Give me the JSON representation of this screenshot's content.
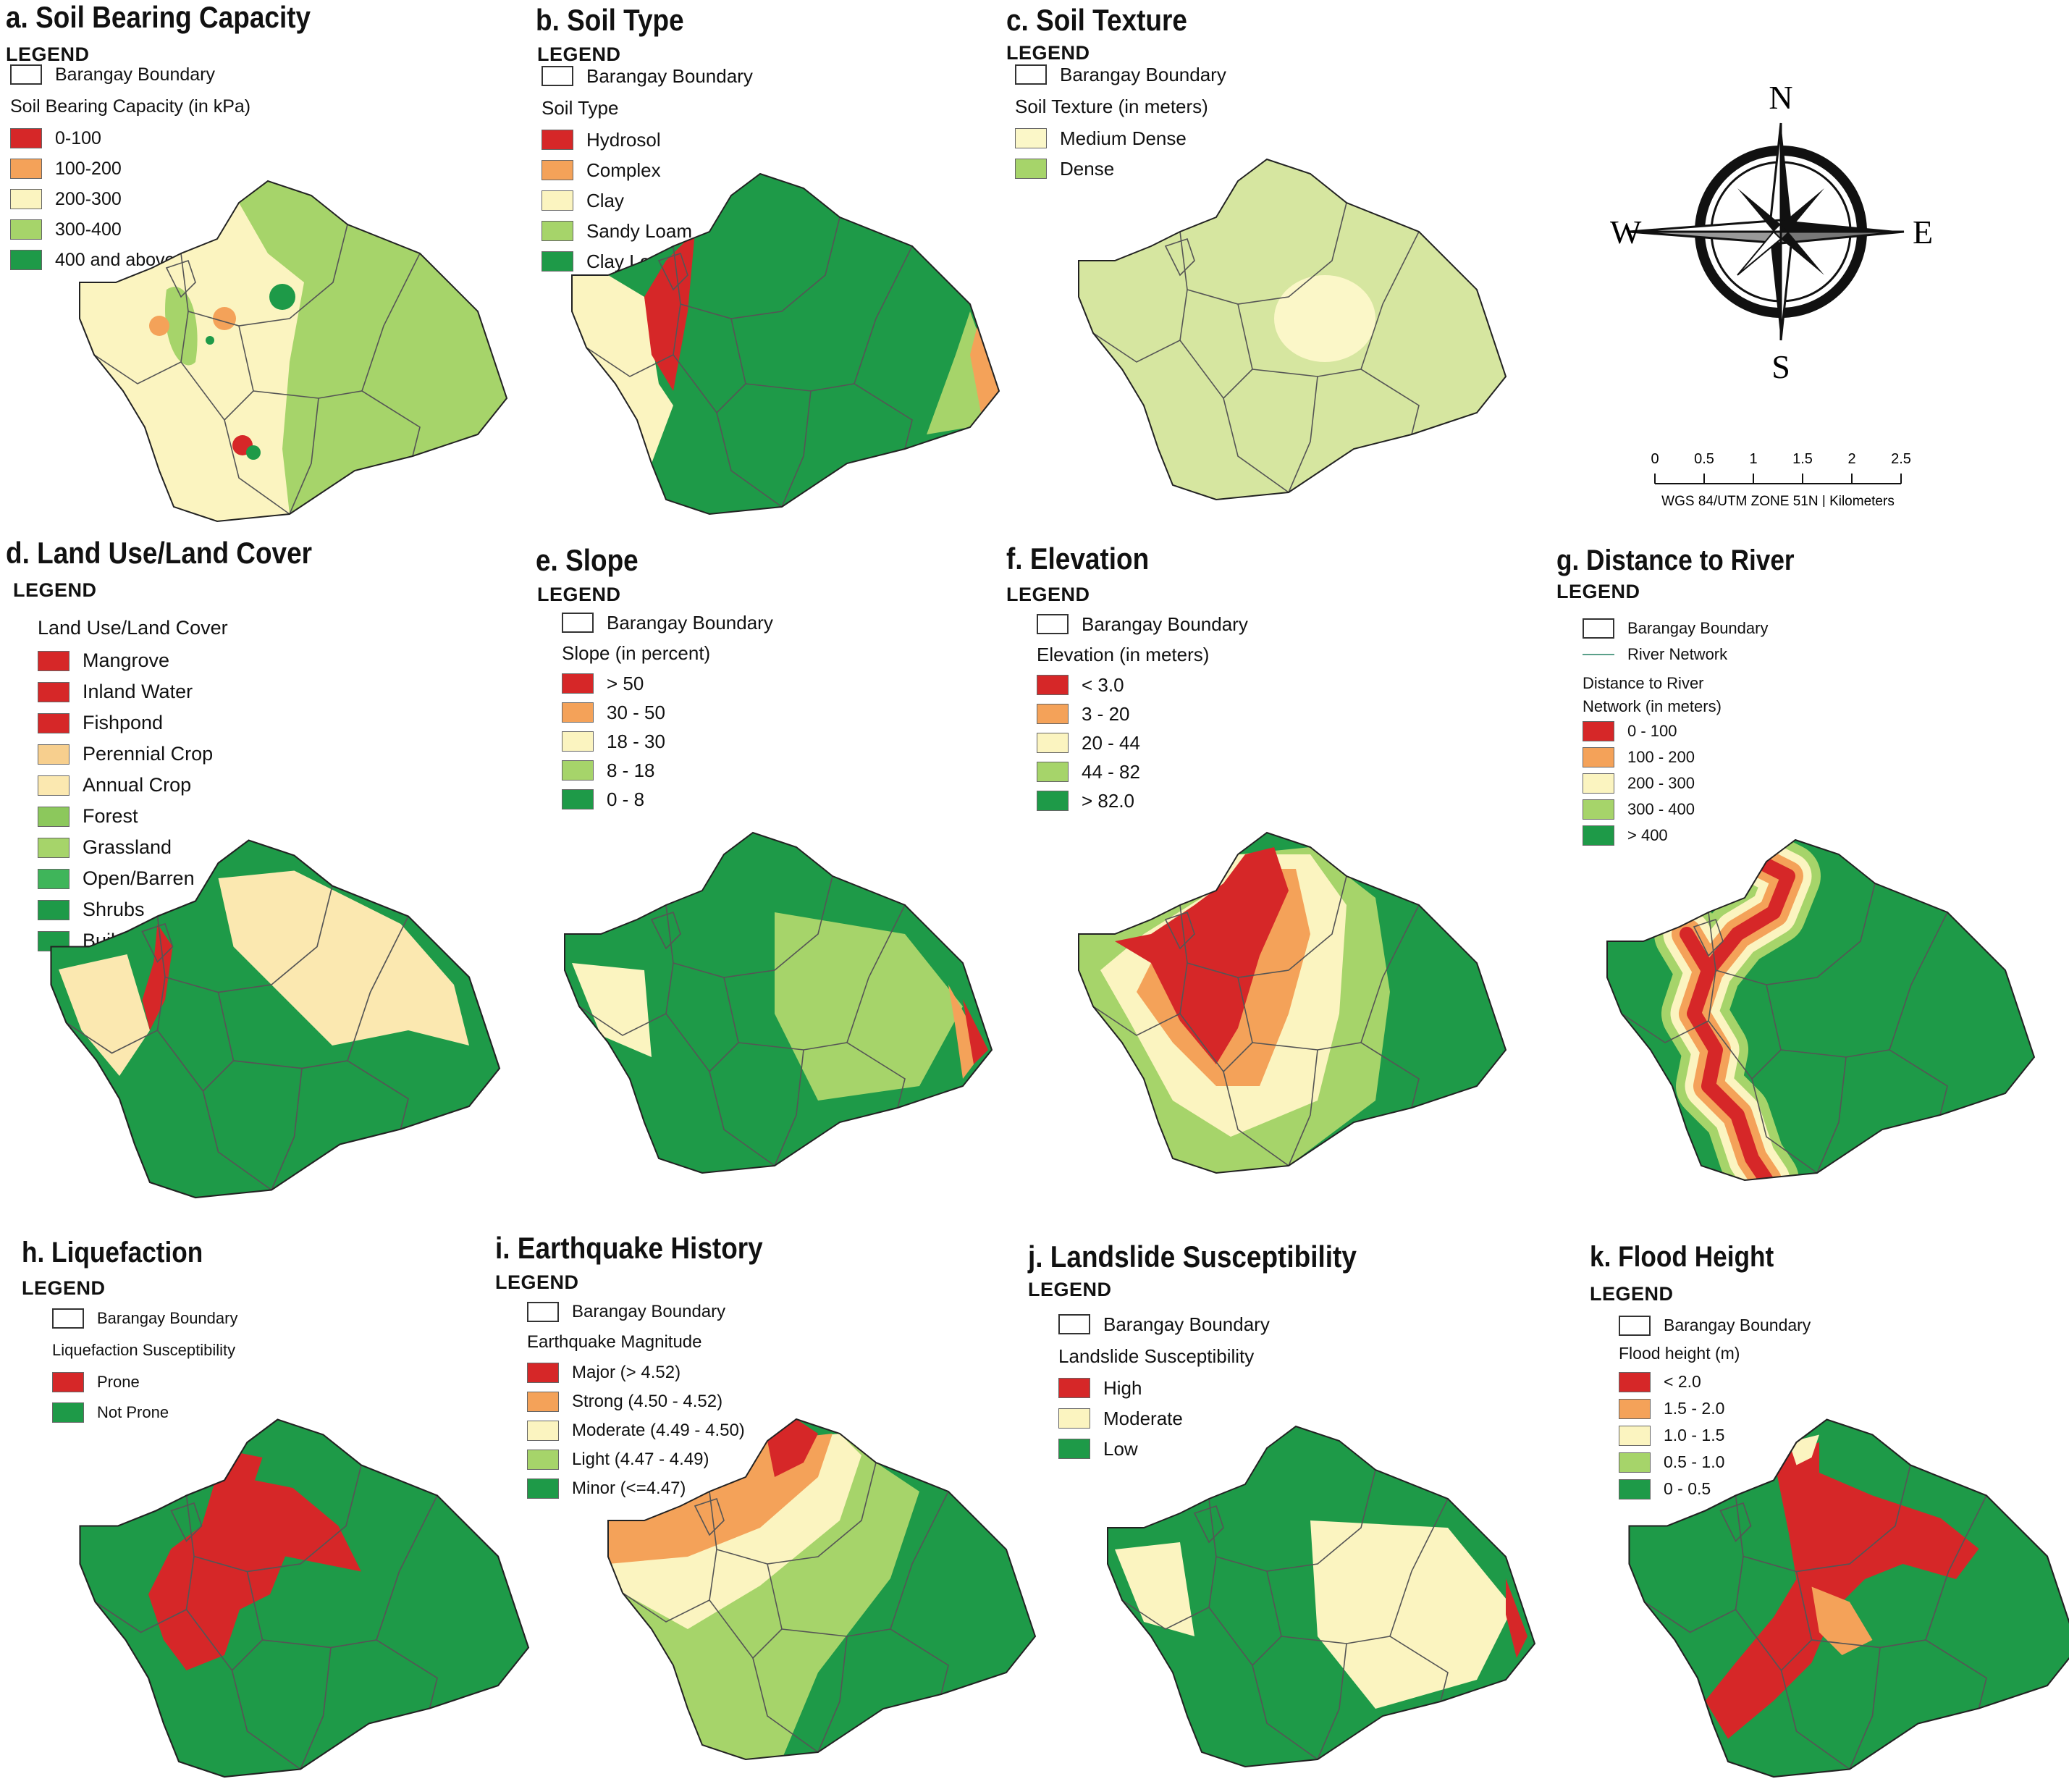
{
  "colors": {
    "red": "#d62728",
    "orange": "#f4a259",
    "cream": "#fbf4c0",
    "lightgreen": "#a6d46a",
    "green": "#1e9a48",
    "paleGreen": "#d6e6a0",
    "paleCream": "#fbf7c8",
    "boundary": "#555555"
  },
  "legend_word": "LEGEND",
  "boundary_label": "Barangay Boundary",
  "panels": {
    "a": {
      "title": "a. Soil Bearing Capacity",
      "subtitle": "Soil Bearing Capacity (in kPa)",
      "items": [
        {
          "label": "0-100",
          "color": "#d62728"
        },
        {
          "label": "100-200",
          "color": "#f4a259"
        },
        {
          "label": "200-300",
          "color": "#fbf4c0"
        },
        {
          "label": "300-400",
          "color": "#a6d46a"
        },
        {
          "label": "400 and above",
          "color": "#1e9a48"
        }
      ]
    },
    "b": {
      "title": "b. Soil Type",
      "subtitle": "Soil Type",
      "items": [
        {
          "label": "Hydrosol",
          "color": "#d62728"
        },
        {
          "label": "Complex",
          "color": "#f4a259"
        },
        {
          "label": "Clay",
          "color": "#fbf4c0"
        },
        {
          "label": "Sandy Loam",
          "color": "#a6d46a"
        },
        {
          "label": "Clay Loam",
          "color": "#1e9a48"
        }
      ]
    },
    "c": {
      "title": "c. Soil Texture",
      "subtitle": "Soil Texture (in meters)",
      "items": [
        {
          "label": "Medium Dense",
          "color": "#fbf7c8"
        },
        {
          "label": "Dense",
          "color": "#a6d46a"
        }
      ]
    },
    "d": {
      "title": "d. Land Use/Land Cover",
      "subtitle": "Land Use/Land Cover",
      "items": [
        {
          "label": "Mangrove",
          "color": "#d62728"
        },
        {
          "label": "Inland Water",
          "color": "#d62728"
        },
        {
          "label": "Fishpond",
          "color": "#d62728"
        },
        {
          "label": "Perennial Crop",
          "color": "#f7cf8e"
        },
        {
          "label": "Annual Crop",
          "color": "#fbe8b0"
        },
        {
          "label": "Forest",
          "color": "#8cc85c"
        },
        {
          "label": "Grassland",
          "color": "#a6d46a"
        },
        {
          "label": "Open/Barren",
          "color": "#3fb55a"
        },
        {
          "label": "Shrubs",
          "color": "#1e9a48"
        },
        {
          "label": "Built-up",
          "color": "#1e9a48"
        }
      ]
    },
    "e": {
      "title": "e. Slope",
      "subtitle": "Slope (in percent)",
      "items": [
        {
          "label": "> 50",
          "color": "#d62728"
        },
        {
          "label": "30 - 50",
          "color": "#f4a259"
        },
        {
          "label": "18 - 30",
          "color": "#fbf4c0"
        },
        {
          "label": "8 - 18",
          "color": "#a6d46a"
        },
        {
          "label": "0 - 8",
          "color": "#1e9a48"
        }
      ]
    },
    "f": {
      "title": "f. Elevation",
      "subtitle": "Elevation (in meters)",
      "items": [
        {
          "label": "< 3.0",
          "color": "#d62728"
        },
        {
          "label": "3 - 20",
          "color": "#f4a259"
        },
        {
          "label": "20 - 44",
          "color": "#fbf4c0"
        },
        {
          "label": "44 - 82",
          "color": "#a6d46a"
        },
        {
          "label": "> 82.0",
          "color": "#1e9a48"
        }
      ]
    },
    "g": {
      "title": "g. Distance to River",
      "river_label": "River Network",
      "subtitle1": "Distance to River",
      "subtitle2": "Network (in meters)",
      "items": [
        {
          "label": "0 - 100",
          "color": "#d62728"
        },
        {
          "label": "100 - 200",
          "color": "#f4a259"
        },
        {
          "label": "200 - 300",
          "color": "#fbf4c0"
        },
        {
          "label": "300 - 400",
          "color": "#a6d46a"
        },
        {
          "label": "> 400",
          "color": "#1e9a48"
        }
      ]
    },
    "h": {
      "title": "h. Liquefaction",
      "subtitle": "Liquefaction Susceptibility",
      "items": [
        {
          "label": "Prone",
          "color": "#d62728"
        },
        {
          "label": "Not Prone",
          "color": "#1e9a48"
        }
      ]
    },
    "i": {
      "title": "i. Earthquake History",
      "subtitle": "Earthquake Magnitude",
      "items": [
        {
          "label": "Major (> 4.52)",
          "color": "#d62728"
        },
        {
          "label": "Strong (4.50 - 4.52)",
          "color": "#f4a259"
        },
        {
          "label": "Moderate (4.49 - 4.50)",
          "color": "#fbf4c0"
        },
        {
          "label": "Light (4.47 - 4.49)",
          "color": "#a6d46a"
        },
        {
          "label": "Minor (<=4.47)",
          "color": "#1e9a48"
        }
      ]
    },
    "j": {
      "title": "j. Landslide Susceptibility",
      "subtitle": "Landslide Susceptibility",
      "items": [
        {
          "label": "High",
          "color": "#d62728"
        },
        {
          "label": "Moderate",
          "color": "#fbf4c0"
        },
        {
          "label": "Low",
          "color": "#1e9a48"
        }
      ]
    },
    "k": {
      "title": "k. Flood Height",
      "subtitle": "Flood height (m)",
      "items": [
        {
          "label": "< 2.0",
          "color": "#d62728"
        },
        {
          "label": "1.5 - 2.0",
          "color": "#f4a259"
        },
        {
          "label": "1.0 - 1.5",
          "color": "#fbf4c0"
        },
        {
          "label": "0.5 - 1.0",
          "color": "#a6d46a"
        },
        {
          "label": "0 - 0.5",
          "color": "#1e9a48"
        }
      ]
    }
  },
  "compass": {
    "n": "N",
    "s": "S",
    "e": "E",
    "w": "W"
  },
  "scale": {
    "ticks": [
      "0",
      "0.5",
      "1",
      "1.5",
      "2",
      "2.5"
    ],
    "caption": "WGS 84/UTM ZONE 51N | Kilometers"
  }
}
